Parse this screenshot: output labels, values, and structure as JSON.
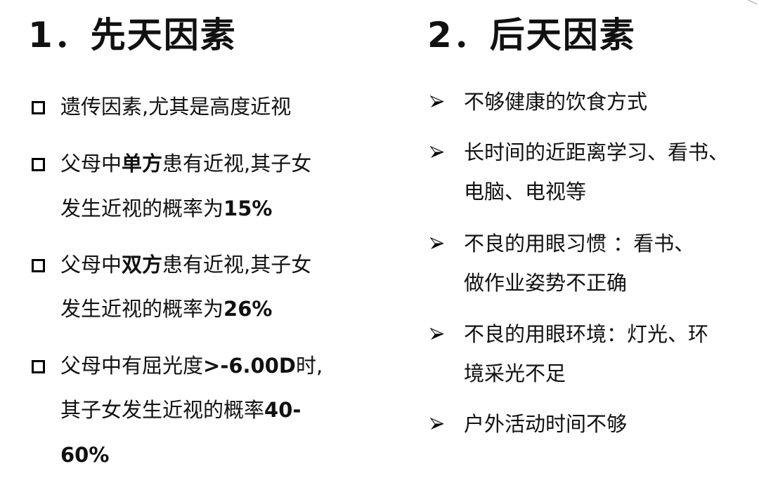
{
  "left": {
    "title": "1．先天因素",
    "items": [
      {
        "l1a": "遗传因素,尤其是高度近视"
      },
      {
        "l1a": "父母中",
        "l1b": "单方",
        "l1c": "患有近视,其子女",
        "l2a": "发生近视的概率为",
        "l2b": "15%"
      },
      {
        "l1a": "父母中",
        "l1b": "双方",
        "l1c": "患有近视,其子女",
        "l2a": "发生近视的概率为",
        "l2b": "26%"
      },
      {
        "l1a": "父母中有屈光度",
        "l1b": ">-6.00D",
        "l1c": "时,",
        "l2a": "其子女发生近视的概率",
        "l2b": "40-",
        "l3b": "60%"
      }
    ],
    "bullet_icon": "hollow-square"
  },
  "right": {
    "title": "2．后天因素",
    "items": [
      {
        "l1": "不够健康的饮食方式"
      },
      {
        "l1": "长时间的近距离学习、看书、",
        "l2": "电脑、电视等"
      },
      {
        "l1": "不良的用眼习惯 ：看书、",
        "l2": "做作业姿势不正确"
      },
      {
        "l1": "不良的用眼环境：灯光、环",
        "l2": "境采光不足"
      },
      {
        "l1": "户外活动时间不够"
      }
    ],
    "bullet_icon": "arrowhead"
  }
}
